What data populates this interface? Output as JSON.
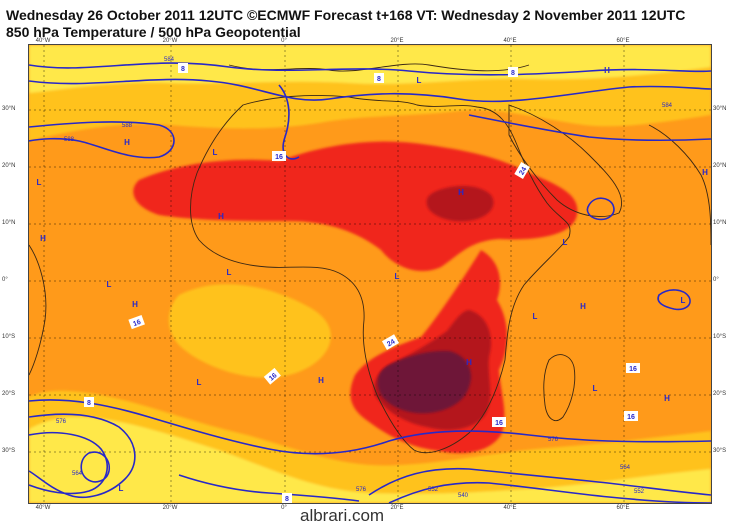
{
  "title_line1": "Wednesday 26 October 2011 12UTC ©ECMWF Forecast t+168 VT: Wednesday 2 November 2011 12UTC",
  "title_line2": "850 hPa Temperature / 500 hPa Geopotential",
  "watermark": "albrari.com",
  "lon_labels": [
    "40°W",
    "20°W",
    "0°",
    "20°E",
    "40°E",
    "60°E"
  ],
  "lat_labels": [
    "30°N",
    "20°N",
    "10°N",
    "0°",
    "10°S",
    "20°S",
    "30°S"
  ],
  "colors": {
    "background": "#ffffff",
    "temp_cool": "#ffe84a",
    "temp_mild": "#ffc21a",
    "temp_warm": "#ff9a1a",
    "temp_hot": "#ff7a14",
    "temp_very_hot": "#f0281e",
    "temp_extreme": "#b4141e",
    "temp_max": "#6e1437",
    "geopotential_line": "#2828c8",
    "coastline": "#3c2814"
  },
  "contour_labels": {
    "temperature": [
      {
        "text": "16"
      },
      {
        "text": "24"
      },
      {
        "text": "24"
      },
      {
        "text": "16"
      },
      {
        "text": "16"
      },
      {
        "text": "16"
      },
      {
        "text": "16"
      },
      {
        "text": "16"
      },
      {
        "text": "8"
      },
      {
        "text": "8"
      },
      {
        "text": "8"
      },
      {
        "text": "8"
      },
      {
        "text": "8"
      }
    ],
    "geopotential": [
      {
        "text": "588"
      },
      {
        "text": "584"
      },
      {
        "text": "588"
      },
      {
        "text": "576"
      },
      {
        "text": "576"
      },
      {
        "text": "584"
      },
      {
        "text": "540"
      },
      {
        "text": "552"
      },
      {
        "text": "564"
      },
      {
        "text": "576"
      },
      {
        "text": "552"
      },
      {
        "text": "564"
      }
    ]
  },
  "pressure_centers": {
    "high": [
      {
        "text": "H"
      },
      {
        "text": "H"
      },
      {
        "text": "H"
      },
      {
        "text": "H"
      },
      {
        "text": "H"
      },
      {
        "text": "H"
      },
      {
        "text": "H"
      },
      {
        "text": "H"
      },
      {
        "text": "H"
      },
      {
        "text": "H"
      },
      {
        "text": "H"
      }
    ],
    "low": [
      {
        "text": "L"
      },
      {
        "text": "L"
      },
      {
        "text": "L"
      },
      {
        "text": "L"
      },
      {
        "text": "L"
      },
      {
        "text": "L"
      },
      {
        "text": "L"
      },
      {
        "text": "L"
      },
      {
        "text": "L"
      },
      {
        "text": "L"
      },
      {
        "text": "L"
      },
      {
        "text": "L"
      }
    ]
  }
}
